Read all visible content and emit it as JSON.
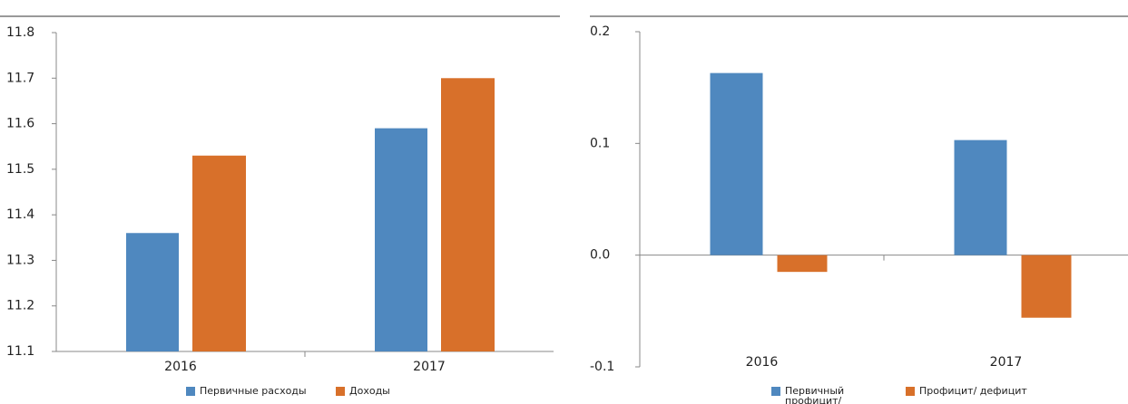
{
  "chart_data": [
    {
      "type": "bar",
      "categories": [
        "2016",
        "2017"
      ],
      "series": [
        {
          "name": "Первичные расходы",
          "color": "#4f88bf",
          "values": [
            11.36,
            11.59
          ]
        },
        {
          "name": "Доходы",
          "color": "#d8702a",
          "values": [
            11.53,
            11.7
          ]
        }
      ],
      "ylim": [
        11.1,
        11.8
      ],
      "yticks": [
        11.1,
        11.2,
        11.3,
        11.4,
        11.5,
        11.6,
        11.7,
        11.8
      ],
      "grid": false
    },
    {
      "type": "bar",
      "categories": [
        "2016",
        "2017"
      ],
      "series": [
        {
          "name": "Первичный профицит/ дефицит",
          "color": "#4f88bf",
          "values": [
            0.163,
            0.103
          ]
        },
        {
          "name": "Профицит/ дефицит",
          "color": "#d8702a",
          "values": [
            -0.015,
            -0.056
          ]
        }
      ],
      "ylim": [
        -0.1,
        0.2
      ],
      "yticks": [
        -0.1,
        {
          "value": 0,
          "label": "0.0"
        },
        0.1,
        0.2
      ],
      "grid": false
    }
  ]
}
